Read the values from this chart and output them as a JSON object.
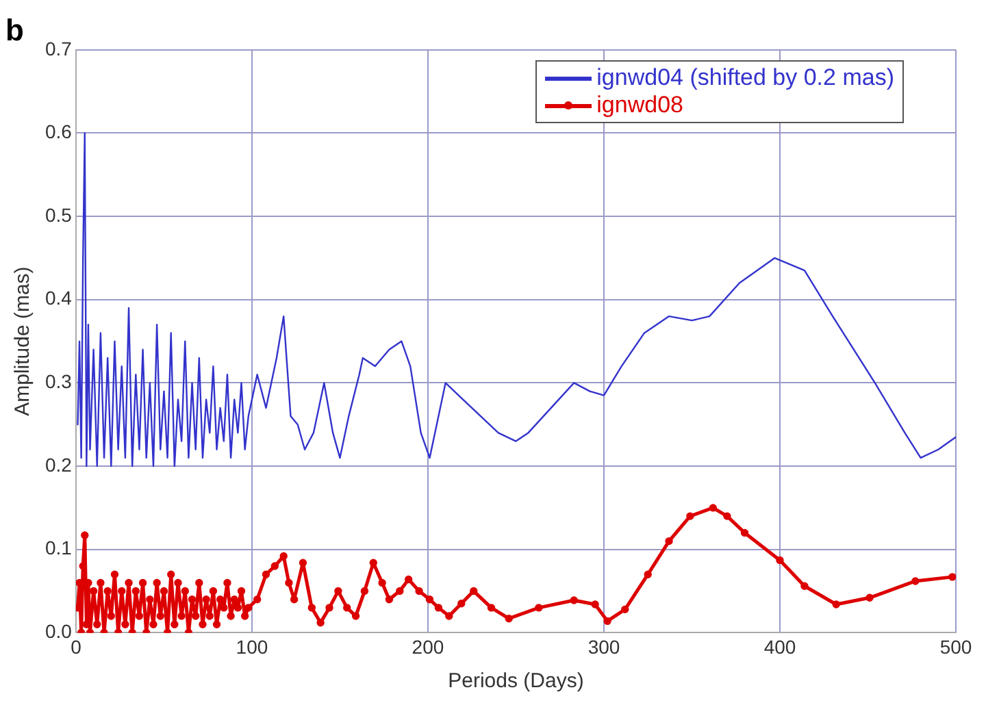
{
  "chart_data": {
    "type": "line",
    "title": "b",
    "xlabel": "Periods (Days)",
    "ylabel": "Amplitude (mas)",
    "xlim": [
      0,
      500
    ],
    "xticks": [
      0,
      100,
      200,
      300,
      400,
      500
    ],
    "ylim": [
      0,
      0.7
    ],
    "yticks": [
      {
        "value": 0,
        "label": "0.0"
      },
      0.1,
      0.2,
      0.3,
      0.4,
      0.5,
      0.6,
      0.7
    ],
    "grid": true,
    "legend": "top right",
    "line_style": "solid",
    "series": [
      {
        "name": "ignwd04 (shifted by 0.2 mas)",
        "color": "#3333cc",
        "marker": "none",
        "x": [
          1,
          2,
          3,
          4,
          5,
          6,
          7,
          8,
          10,
          12,
          14,
          16,
          18,
          20,
          22,
          24,
          26,
          28,
          30,
          32,
          34,
          36,
          38,
          40,
          42,
          44,
          46,
          48,
          50,
          52,
          54,
          56,
          58,
          60,
          62,
          64,
          66,
          68,
          70,
          72,
          74,
          76,
          78,
          80,
          82,
          84,
          86,
          88,
          90,
          92,
          94,
          96,
          98,
          103,
          108,
          114,
          118,
          122,
          126,
          130,
          135,
          141,
          146,
          150,
          155,
          161,
          163,
          170,
          178,
          185,
          190,
          196,
          201,
          210,
          220,
          230,
          240,
          250,
          257,
          270,
          283,
          292,
          300,
          310,
          323,
          337,
          350,
          360,
          377,
          397,
          414,
          430,
          454,
          471,
          480,
          490,
          500
        ],
        "values": [
          0.25,
          0.35,
          0.21,
          0.45,
          0.6,
          0.2,
          0.37,
          0.22,
          0.34,
          0.2,
          0.36,
          0.21,
          0.33,
          0.2,
          0.35,
          0.22,
          0.32,
          0.21,
          0.39,
          0.2,
          0.31,
          0.22,
          0.34,
          0.21,
          0.3,
          0.2,
          0.37,
          0.22,
          0.29,
          0.21,
          0.36,
          0.2,
          0.28,
          0.23,
          0.35,
          0.21,
          0.3,
          0.22,
          0.33,
          0.21,
          0.28,
          0.24,
          0.32,
          0.22,
          0.27,
          0.23,
          0.31,
          0.21,
          0.28,
          0.24,
          0.3,
          0.22,
          0.26,
          0.31,
          0.27,
          0.33,
          0.38,
          0.26,
          0.25,
          0.22,
          0.24,
          0.3,
          0.24,
          0.21,
          0.26,
          0.31,
          0.33,
          0.32,
          0.34,
          0.35,
          0.32,
          0.24,
          0.21,
          0.3,
          0.28,
          0.26,
          0.24,
          0.23,
          0.24,
          0.27,
          0.3,
          0.29,
          0.285,
          0.32,
          0.36,
          0.38,
          0.375,
          0.38,
          0.42,
          0.45,
          0.435,
          0.38,
          0.3,
          0.24,
          0.21,
          0.22,
          0.235
        ]
      },
      {
        "name": "ignwd08",
        "color": "#dd0000",
        "marker": "circle",
        "x": [
          1,
          2,
          3,
          4,
          5,
          6,
          7,
          8,
          10,
          12,
          14,
          16,
          18,
          20,
          22,
          24,
          26,
          28,
          30,
          32,
          34,
          36,
          38,
          40,
          42,
          44,
          46,
          48,
          50,
          52,
          54,
          56,
          58,
          60,
          62,
          64,
          66,
          68,
          70,
          72,
          74,
          76,
          78,
          80,
          82,
          84,
          86,
          88,
          90,
          92,
          94,
          96,
          98,
          103,
          108,
          113,
          118,
          121,
          124,
          129,
          134,
          139,
          144,
          149,
          154,
          159,
          164,
          169,
          174,
          178,
          184,
          189,
          195,
          201,
          206,
          212,
          219,
          226,
          236,
          246,
          263,
          283,
          295,
          302,
          312,
          325,
          337,
          349,
          362,
          370,
          380,
          400,
          414,
          432,
          451,
          477,
          498
        ],
        "values": [
          0.03,
          0.06,
          0.0,
          0.08,
          0.117,
          0.01,
          0.06,
          0.0,
          0.05,
          0.01,
          0.06,
          0.0,
          0.05,
          0.02,
          0.07,
          0.0,
          0.05,
          0.01,
          0.06,
          0.0,
          0.05,
          0.02,
          0.06,
          0.0,
          0.04,
          0.01,
          0.06,
          0.02,
          0.05,
          0.0,
          0.07,
          0.01,
          0.06,
          0.02,
          0.05,
          0.0,
          0.04,
          0.02,
          0.06,
          0.01,
          0.04,
          0.02,
          0.05,
          0.01,
          0.04,
          0.03,
          0.06,
          0.02,
          0.04,
          0.03,
          0.05,
          0.02,
          0.03,
          0.04,
          0.07,
          0.08,
          0.092,
          0.06,
          0.04,
          0.084,
          0.03,
          0.012,
          0.03,
          0.05,
          0.03,
          0.02,
          0.05,
          0.084,
          0.06,
          0.04,
          0.05,
          0.064,
          0.05,
          0.04,
          0.03,
          0.02,
          0.035,
          0.05,
          0.03,
          0.017,
          0.03,
          0.039,
          0.034,
          0.014,
          0.028,
          0.07,
          0.11,
          0.14,
          0.15,
          0.14,
          0.12,
          0.087,
          0.056,
          0.034,
          0.042,
          0.062,
          0.067
        ]
      }
    ]
  }
}
